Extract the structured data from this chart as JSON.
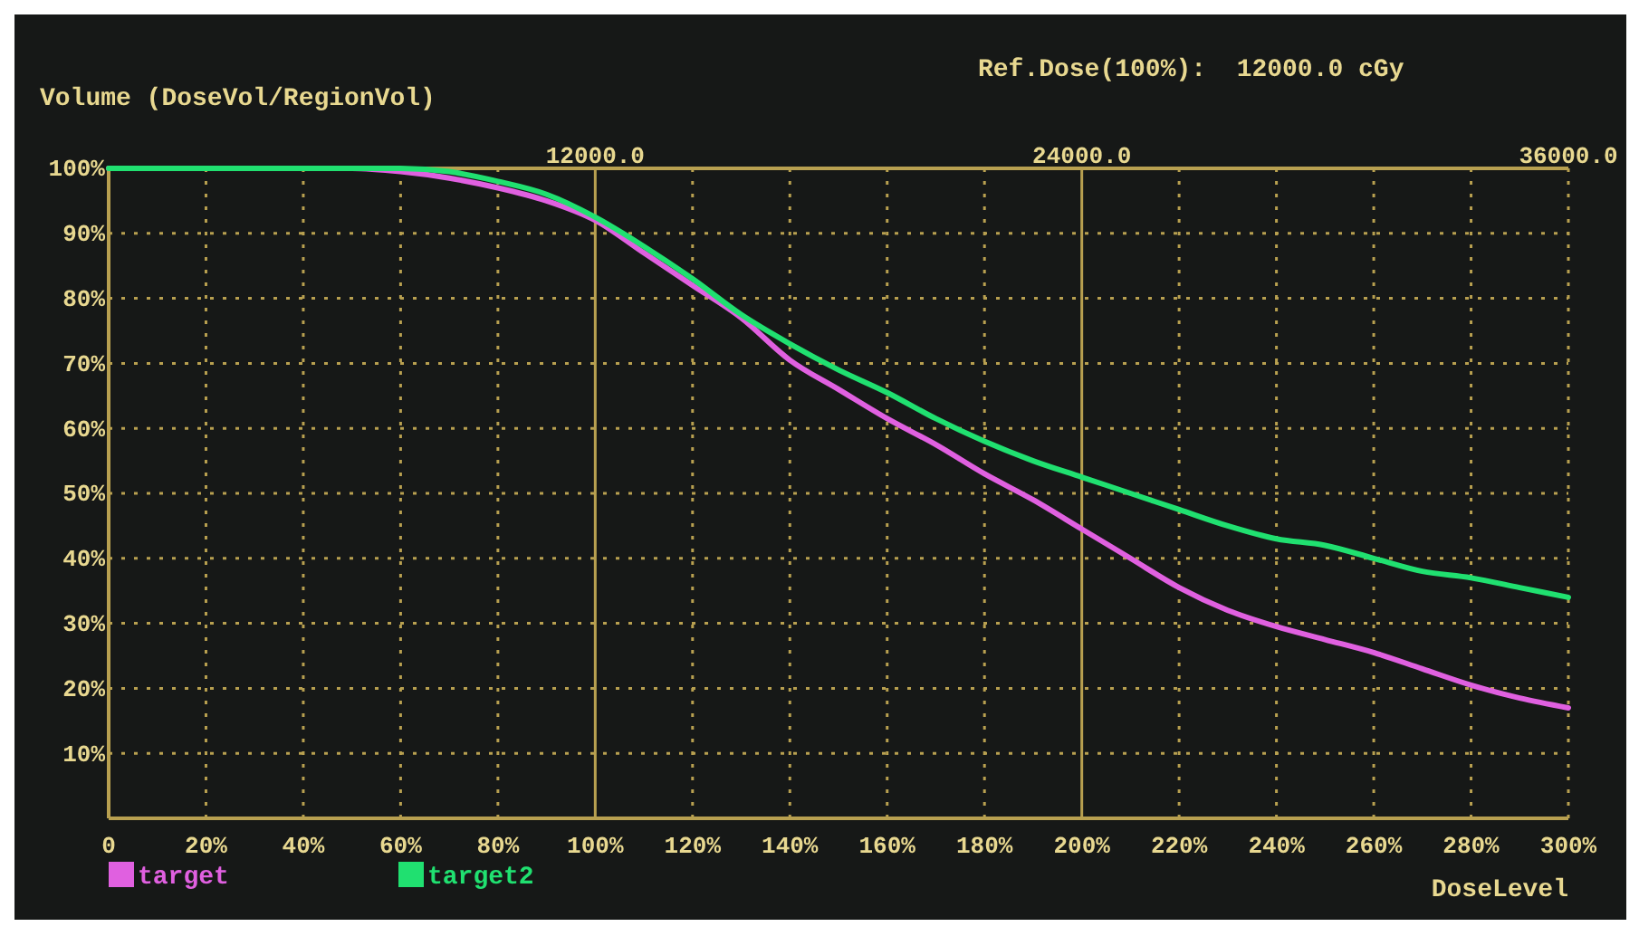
{
  "chart_data": {
    "type": "line",
    "ylabel": "Volume (DoseVol/RegionVol)",
    "xlabel": "DoseLevel",
    "annotations": [
      "Ref.Dose(100%):  12000.0 cGy"
    ],
    "xlim": [
      0,
      300
    ],
    "xticks": [
      {
        "value": 0,
        "label": "0"
      },
      {
        "value": 20,
        "label": "20%"
      },
      {
        "value": 40,
        "label": "40%"
      },
      {
        "value": 60,
        "label": "60%"
      },
      {
        "value": 80,
        "label": "80%"
      },
      {
        "value": 100,
        "label": "100%"
      },
      {
        "value": 120,
        "label": "120%"
      },
      {
        "value": 140,
        "label": "140%"
      },
      {
        "value": 160,
        "label": "160%"
      },
      {
        "value": 180,
        "label": "180%"
      },
      {
        "value": 200,
        "label": "200%"
      },
      {
        "value": 220,
        "label": "220%"
      },
      {
        "value": 240,
        "label": "240%"
      },
      {
        "value": 260,
        "label": "260%"
      },
      {
        "value": 280,
        "label": "280%"
      },
      {
        "value": 300,
        "label": "300%"
      }
    ],
    "x2lim": [
      0,
      36000
    ],
    "x2ticks": [
      {
        "value": 12000,
        "label": "12000.0"
      },
      {
        "value": 24000,
        "label": "24000.0"
      },
      {
        "value": 36000,
        "label": "36000.0"
      }
    ],
    "ylim": [
      0,
      100
    ],
    "yticks": [
      {
        "value": 10,
        "label": "10%"
      },
      {
        "value": 20,
        "label": "20%"
      },
      {
        "value": 30,
        "label": "30%"
      },
      {
        "value": 40,
        "label": "40%"
      },
      {
        "value": 50,
        "label": "50%"
      },
      {
        "value": 60,
        "label": "60%"
      },
      {
        "value": 70,
        "label": "70%"
      },
      {
        "value": 80,
        "label": "80%"
      },
      {
        "value": 90,
        "label": "90%"
      },
      {
        "value": 100,
        "label": "100%"
      }
    ],
    "grid": true,
    "legend": "bottom left",
    "x": [
      0,
      50,
      60,
      70,
      80,
      90,
      100,
      110,
      120,
      130,
      140,
      150,
      160,
      170,
      180,
      190,
      200,
      210,
      220,
      230,
      240,
      250,
      260,
      270,
      280,
      290,
      300
    ],
    "series": [
      {
        "name": "target",
        "color": "#e060e0",
        "values": [
          100,
          100,
          99.5,
          98.5,
          97,
          95,
          92,
          87,
          82,
          77,
          70.5,
          66,
          61.5,
          57.5,
          53,
          49,
          44.5,
          40,
          35.5,
          32,
          29.5,
          27.5,
          25.5,
          23,
          20.5,
          18.5,
          17
        ]
      },
      {
        "name": "target2",
        "color": "#20e070",
        "values": [
          100,
          100,
          100,
          99.5,
          98,
          96,
          92.5,
          88,
          83,
          77.5,
          73,
          69,
          65.5,
          61.5,
          58,
          55,
          52.5,
          50,
          47.5,
          45,
          43,
          42,
          40,
          38,
          37,
          35.5,
          34
        ]
      }
    ]
  }
}
